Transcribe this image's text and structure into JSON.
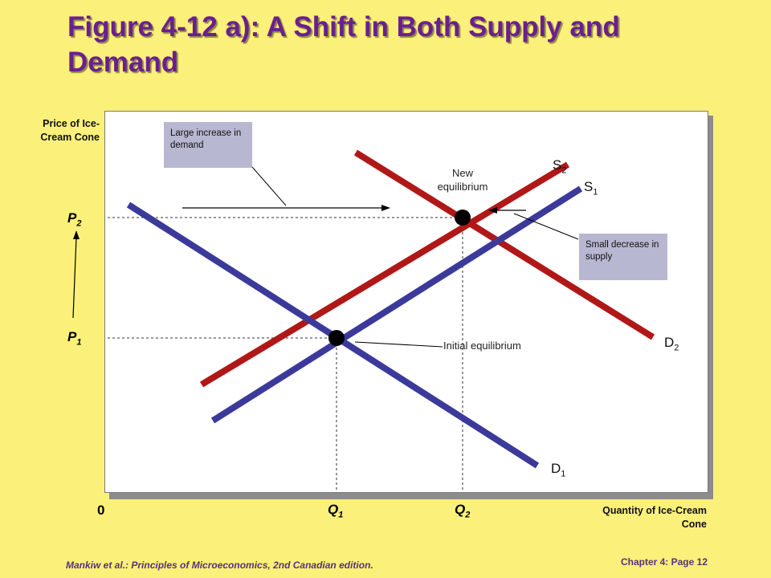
{
  "title": "Figure 4-12 a): A Shift in Both Supply and Demand",
  "axes": {
    "y_label": "Price of Ice-Cream Cone",
    "x_label": "Quantity of Ice-Cream Cone",
    "origin": "0"
  },
  "prices": [
    {
      "base": "P",
      "sub": "2"
    },
    {
      "base": "P",
      "sub": "1"
    }
  ],
  "quantities": [
    {
      "base": "Q",
      "sub": "1"
    },
    {
      "base": "Q",
      "sub": "2"
    }
  ],
  "curves": {
    "s2": {
      "base": "S",
      "sub": "2"
    },
    "s1": {
      "base": "S",
      "sub": "1"
    },
    "d2": {
      "base": "D",
      "sub": "2"
    },
    "d1": {
      "base": "D",
      "sub": "1"
    }
  },
  "annotations": {
    "large_increase": "Large increase in demand",
    "small_decrease": "Small decrease in supply",
    "new_equilibrium": "New equilibrium",
    "initial_equilibrium": "Initial equilibrium"
  },
  "colors": {
    "supply": "#b01818",
    "demand": "#3b3a9b",
    "title": "#6b1f8f",
    "background": "#fbf07a"
  },
  "footer": {
    "source": "Mankiw et al.: Principles of Microeconomics, 2nd Canadian edition.",
    "page": "Chapter 4: Page 12"
  }
}
